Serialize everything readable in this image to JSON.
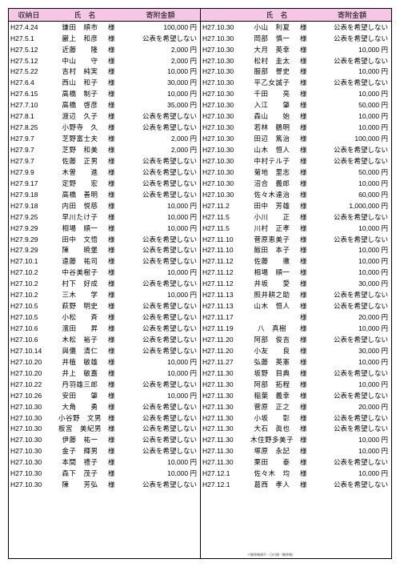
{
  "header": {
    "date": "収納日",
    "name": "氏　名",
    "amount": "寄附金額"
  },
  "honorific": "様",
  "nondisclosure": "公表を希望しない",
  "yen_suffix": " 円",
  "footnote": "※敬称略順不・日付順（敬称略）",
  "left_rows": [
    {
      "date": "H27.4.24",
      "name": "鎌田　順市",
      "amt": "100,000"
    },
    {
      "date": "H27.5.1",
      "name": "巌上　和彦",
      "amt": null
    },
    {
      "date": "H27.5.12",
      "name": "近藤　　隆",
      "amt": "2,000"
    },
    {
      "date": "H27.5.12",
      "name": "中山　　守",
      "amt": "2,000"
    },
    {
      "date": "H27.5.22",
      "name": "吉村　純実",
      "amt": "10,000"
    },
    {
      "date": "H27.6.4",
      "name": "西山　和子",
      "amt": "30,000"
    },
    {
      "date": "H27.6.15",
      "name": "高橋　制子",
      "amt": "10,000"
    },
    {
      "date": "H27.7.10",
      "name": "高橋　啓彦",
      "amt": "35,000"
    },
    {
      "date": "H27.8.1",
      "name": "渡辺　久子",
      "amt": null
    },
    {
      "date": "H27.8.25",
      "name": "小野寺　久",
      "amt": null
    },
    {
      "date": "H27.9.7",
      "name": "芝野富士夫",
      "amt": "2,000"
    },
    {
      "date": "H27.9.7",
      "name": "芝野　和美",
      "amt": "2,000"
    },
    {
      "date": "H27.9.7",
      "name": "佐藤　正男",
      "amt": null
    },
    {
      "date": "H27.9.9",
      "name": "木曽　　進",
      "amt": null
    },
    {
      "date": "H27.9.17",
      "name": "定野　　宏",
      "amt": null
    },
    {
      "date": "H27.9.18",
      "name": "高橋　善明",
      "amt": null
    },
    {
      "date": "H27.9.18",
      "name": "内田　悦慈",
      "amt": "10,000"
    },
    {
      "date": "H27.9.25",
      "name": "早川たけ子",
      "amt": "10,000"
    },
    {
      "date": "H27.9.29",
      "name": "相場　順一",
      "amt": "10,000"
    },
    {
      "date": "H27.9.29",
      "name": "田中　文悟",
      "amt": null
    },
    {
      "date": "H27.9.29",
      "name": "陳　　暁堡",
      "amt": null
    },
    {
      "date": "H27.10.1",
      "name": "遠藤　祐司",
      "amt": null
    },
    {
      "date": "H27.10.2",
      "name": "中谷美樹子",
      "amt": "10,000"
    },
    {
      "date": "H27.10.2",
      "name": "村下　好成",
      "amt": null
    },
    {
      "date": "H27.10.2",
      "name": "三木　　学",
      "amt": "10,000"
    },
    {
      "date": "H27.10.5",
      "name": "萩野　明史",
      "amt": null
    },
    {
      "date": "H27.10.5",
      "name": "小松　　斉",
      "amt": null
    },
    {
      "date": "H27.10.6",
      "name": "濱田　　昇",
      "amt": null
    },
    {
      "date": "H27.10.6",
      "name": "木松　裕子",
      "amt": null
    },
    {
      "date": "H27.10.14",
      "name": "與儀　清仁",
      "amt": null
    },
    {
      "date": "H27.10.20",
      "name": "井植　敏雄",
      "amt": "10,000"
    },
    {
      "date": "H27.10.20",
      "name": "井上　敏嘉",
      "amt": "10,000"
    },
    {
      "date": "H27.10.22",
      "name": "丹羽雄三郎",
      "amt": null
    },
    {
      "date": "H27.10.26",
      "name": "安田　　肇",
      "amt": "10,000"
    },
    {
      "date": "H27.10.30",
      "name": "大角　　勇",
      "amt": null
    },
    {
      "date": "H27.10.30",
      "name": "小谷野　文男",
      "amt": null
    },
    {
      "date": "H27.10.30",
      "name": "板宮　美紀男",
      "amt": null
    },
    {
      "date": "H27.10.30",
      "name": "伊藤　祐一",
      "amt": null
    },
    {
      "date": "H27.10.30",
      "name": "金子　輝男",
      "amt": null
    },
    {
      "date": "H27.10.30",
      "name": "本間　禮子",
      "amt": "10,000"
    },
    {
      "date": "H27.10.30",
      "name": "森下　茂子",
      "amt": "10,000"
    },
    {
      "date": "H27.10.30",
      "name": "陳　　芳弘",
      "amt": null
    }
  ],
  "right_rows": [
    {
      "date": "H27.10.30",
      "name": "小山　利夏",
      "amt": null
    },
    {
      "date": "H27.10.30",
      "name": "岡部　慎一",
      "amt": null
    },
    {
      "date": "H27.10.30",
      "name": "大月　英幸",
      "amt": "10,000"
    },
    {
      "date": "H27.10.30",
      "name": "松村　圭太",
      "amt": null
    },
    {
      "date": "H27.10.30",
      "name": "服部　譽史",
      "amt": "10,000"
    },
    {
      "date": "H27.10.30",
      "name": "平乙女誠子",
      "amt": null
    },
    {
      "date": "H27.10.30",
      "name": "千田　　亮",
      "amt": "10,000"
    },
    {
      "date": "H27.10.30",
      "name": "入江　　肇",
      "amt": "50,000"
    },
    {
      "date": "H27.10.30",
      "name": "森山　　始",
      "amt": "10,000"
    },
    {
      "date": "H27.10.30",
      "name": "若林　鶴明",
      "amt": "10,000"
    },
    {
      "date": "H27.10.30",
      "name": "田辺　篤治",
      "amt": "100,000"
    },
    {
      "date": "H27.10.30",
      "name": "山木　恒人",
      "amt": null
    },
    {
      "date": "H27.10.30",
      "name": "中村テル子",
      "amt": null
    },
    {
      "date": "H27.10.30",
      "name": "菊地　里志",
      "amt": "50,000"
    },
    {
      "date": "H27.10.30",
      "name": "沼合　義郎",
      "amt": "10,000"
    },
    {
      "date": "H27.10.30",
      "name": "佐々木達治",
      "amt": "60,000"
    },
    {
      "date": "H27.11.2",
      "name": "田中　芳雄",
      "amt": "1,000,000"
    },
    {
      "date": "H27.11.5",
      "name": "小川　　正",
      "amt": null
    },
    {
      "date": "H27.11.5",
      "name": "川村　正孝",
      "amt": "10,000"
    },
    {
      "date": "H27.11.10",
      "name": "菅原恵美子",
      "amt": null
    },
    {
      "date": "H27.11.10",
      "name": "飯田　本子",
      "amt": "10,000"
    },
    {
      "date": "H27.11.12",
      "name": "佐藤　　徹",
      "amt": "10,000"
    },
    {
      "date": "H27.11.12",
      "name": "相場　順一",
      "amt": "10,000"
    },
    {
      "date": "H27.11.12",
      "name": "井坂　　愛",
      "amt": "30,000"
    },
    {
      "date": "H27.11.13",
      "name": "照井耕之助",
      "amt": null
    },
    {
      "date": "H27.11.13",
      "name": "山木　恒人",
      "amt": null
    },
    {
      "date": "H27.11.17",
      "name": "",
      "amt": "20,000"
    },
    {
      "date": "H27.11.19",
      "name": "八　真樹",
      "amt": "10,000"
    },
    {
      "date": "H27.11.20",
      "name": "阿部　俊吉",
      "amt": null
    },
    {
      "date": "H27.11.20",
      "name": "小友　　良",
      "amt": "30,000"
    },
    {
      "date": "H27.11.27",
      "name": "弘藤　英憲",
      "amt": "10,000"
    },
    {
      "date": "H27.11.30",
      "name": "坂野　目典",
      "amt": null
    },
    {
      "date": "H27.11.30",
      "name": "阿部　拓程",
      "amt": "10,000"
    },
    {
      "date": "H27.11.30",
      "name": "稲葉　義幸",
      "amt": null
    },
    {
      "date": "H27.11.30",
      "name": "菅原　正之",
      "amt": "20,000"
    },
    {
      "date": "H27.11.30",
      "name": "小坂　　彰",
      "amt": null
    },
    {
      "date": "H27.11.30",
      "name": "大石　眞也",
      "amt": null
    },
    {
      "date": "H27.11.30",
      "name": "木住野多美子",
      "amt": "10,000"
    },
    {
      "date": "H27.11.30",
      "name": "塚原　永記",
      "amt": "10,000"
    },
    {
      "date": "H27.11.30",
      "name": "栗田　　泰",
      "amt": null
    },
    {
      "date": "H27.12.1",
      "name": "佐々木　均",
      "amt": "10,000"
    },
    {
      "date": "H27.12.1",
      "name": "葛西　孝人",
      "amt": null
    }
  ]
}
